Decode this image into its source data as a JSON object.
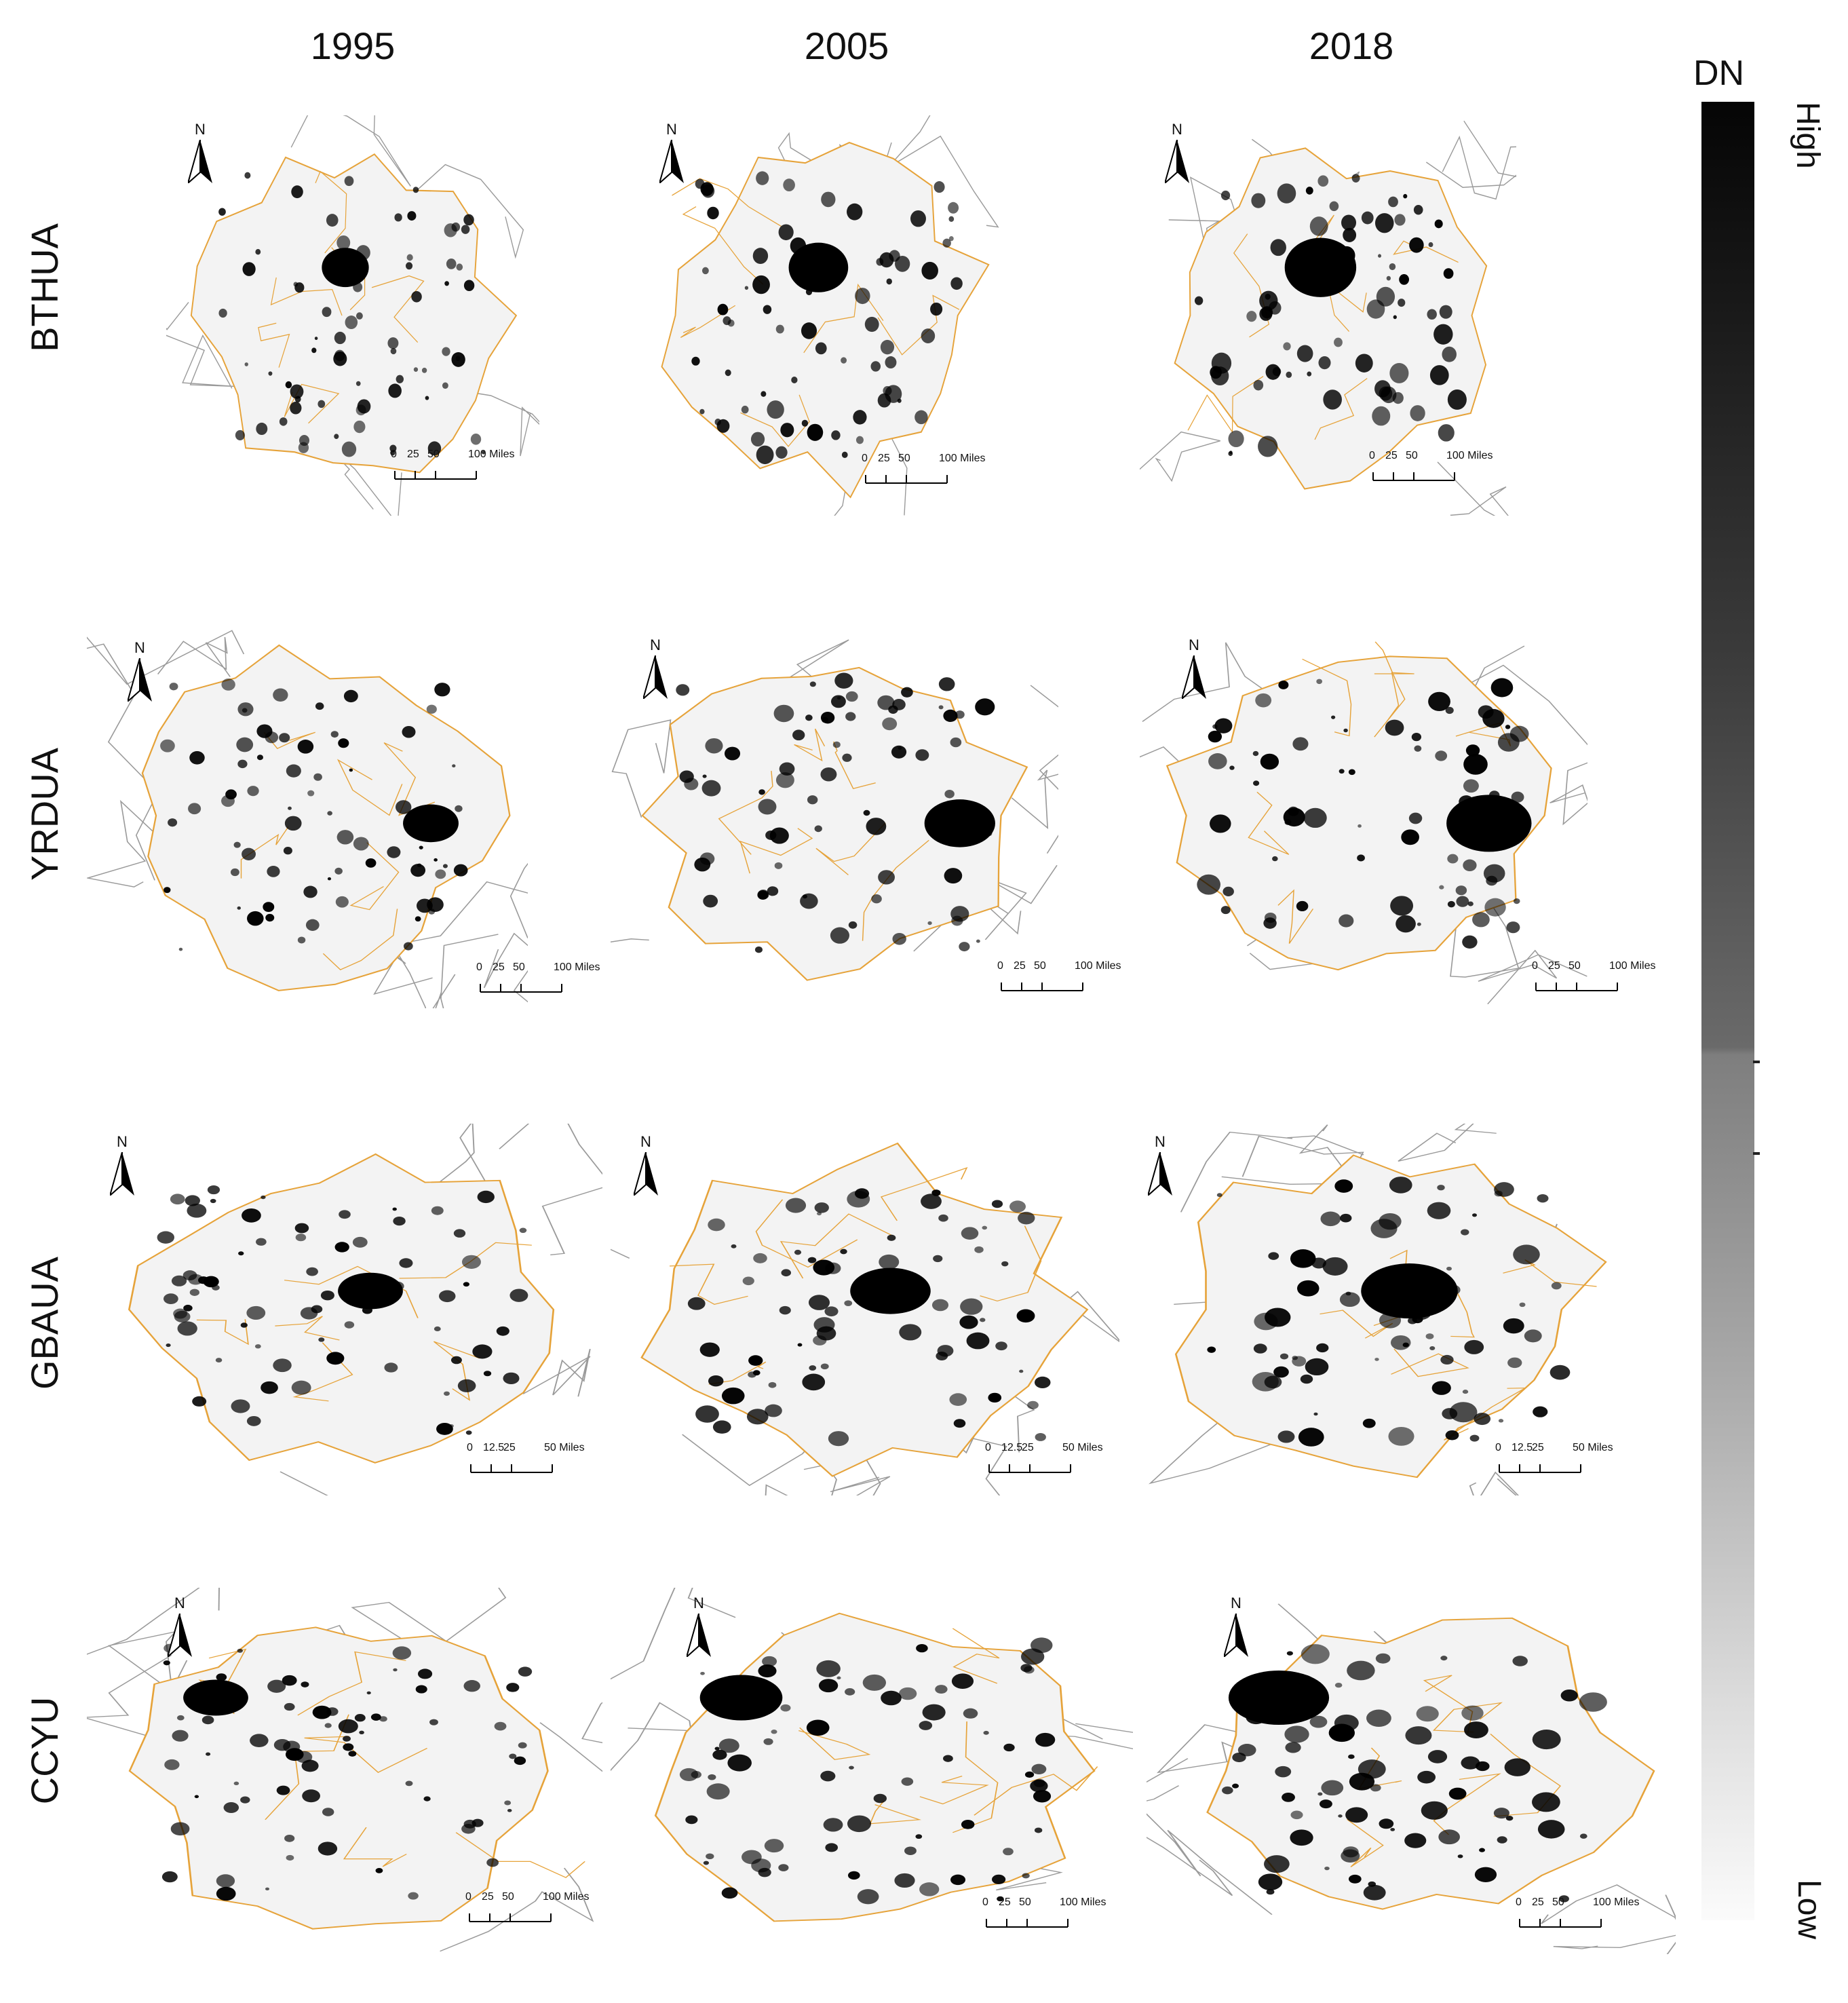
{
  "figure": {
    "columns": [
      "1995",
      "2005",
      "2018"
    ],
    "rows": [
      "BTHUA",
      "YRDUA",
      "GBAUA",
      "CCYU"
    ]
  },
  "north_arrow_label": "N",
  "scalebars": {
    "BTHUA": {
      "ticks": [
        "0",
        "25",
        "50",
        "100 Miles"
      ]
    },
    "YRDUA": {
      "ticks": [
        "0",
        "25",
        "50",
        "100 Miles"
      ]
    },
    "GBAUA": {
      "ticks": [
        "0",
        "12.5",
        "25",
        "50 Miles"
      ]
    },
    "CCYU": {
      "ticks": [
        "0",
        "25",
        "50",
        "100 Miles"
      ]
    }
  },
  "legend": {
    "title": "DN",
    "high": "High",
    "low": "Low"
  },
  "colors": {
    "boundary_primary": "#e6a33a",
    "boundary_secondary": "#9a9a9a",
    "light": "#000000",
    "background": "#ffffff"
  }
}
